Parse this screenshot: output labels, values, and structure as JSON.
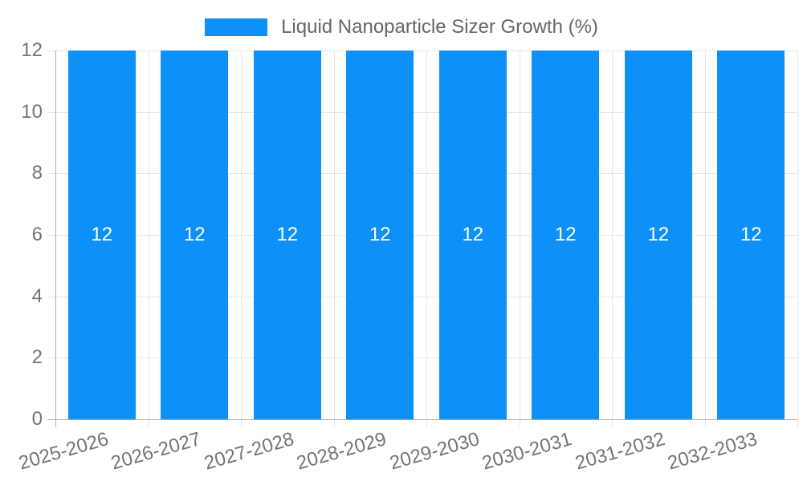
{
  "legend": {
    "label": "Liquid Nanoparticle Sizer Growth (%)"
  },
  "chart_data": {
    "type": "bar",
    "title": "Liquid Nanoparticle Sizer Growth (%)",
    "categories": [
      "2025-2026",
      "2026-2027",
      "2027-2028",
      "2028-2029",
      "2029-2030",
      "2030-2031",
      "2031-2032",
      "2032-2033"
    ],
    "series": [
      {
        "name": "Liquid Nanoparticle Sizer Growth (%)",
        "values": [
          12,
          12,
          12,
          12,
          12,
          12,
          12,
          12
        ]
      }
    ],
    "data_labels": [
      "12",
      "12",
      "12",
      "12",
      "12",
      "12",
      "12",
      "12"
    ],
    "xlabel": "",
    "ylabel": "",
    "ylim": [
      0,
      12
    ],
    "yticks": [
      0,
      2,
      4,
      6,
      8,
      10,
      12
    ],
    "grid": true,
    "legend_position": "top-center",
    "x_tick_rotation_deg": -16,
    "colors": {
      "bar": "#0E90F9",
      "grid_light": "#E5E5E5",
      "axis_dark": "#ADADAD",
      "tick_text": "#757575",
      "legend_text": "#666666",
      "data_label_text": "#ffffff"
    }
  }
}
